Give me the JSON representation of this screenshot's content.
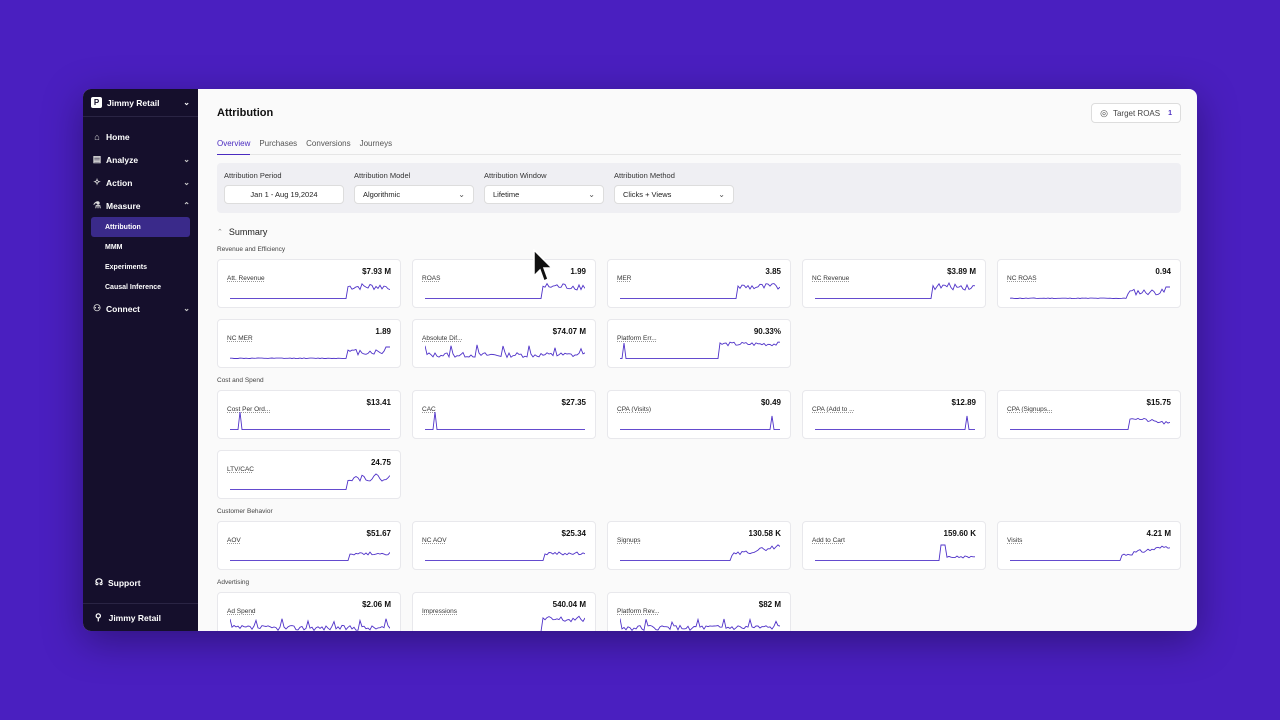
{
  "sidebar": {
    "org_name": "Jimmy Retail",
    "org_logo": "P",
    "items": [
      {
        "label": "Home",
        "icon": "home-icon"
      },
      {
        "label": "Analyze",
        "icon": "analyze-icon"
      },
      {
        "label": "Action",
        "icon": "action-icon"
      },
      {
        "label": "Measure",
        "icon": "measure-icon"
      }
    ],
    "measure_subitems": [
      "Attribution",
      "MMM",
      "Experiments",
      "Causal Inference"
    ],
    "connect_label": "Connect",
    "support_label": "Support",
    "user_name": "Jimmy Retail"
  },
  "header": {
    "title": "Attribution",
    "target_roas_label": "Target ROAS",
    "target_roas_count": "1"
  },
  "tabs": [
    "Overview",
    "Purchases",
    "Conversions",
    "Journeys"
  ],
  "filters": [
    {
      "label": "Attribution Period",
      "value": "Jan 1 - Aug 19,2024"
    },
    {
      "label": "Attribution Model",
      "value": "Algorithmic"
    },
    {
      "label": "Attribution Window",
      "value": "Lifetime"
    },
    {
      "label": "Attribution Method",
      "value": "Clicks + Views"
    }
  ],
  "summary_label": "Summary",
  "sections": [
    {
      "label": "Revenue and Efficiency",
      "cards": [
        {
          "name": "Att. Revenue",
          "value": "$7.93 M",
          "pattern": "step-noisy"
        },
        {
          "name": "ROAS",
          "value": "1.99",
          "pattern": "step-noisy"
        },
        {
          "name": "MER",
          "value": "3.85",
          "pattern": "step-noisy"
        },
        {
          "name": "NC Revenue",
          "value": "$3.89 M",
          "pattern": "step-noisy"
        },
        {
          "name": "NC ROAS",
          "value": "0.94",
          "pattern": "small-step"
        },
        {
          "name": "NC MER",
          "value": "1.89",
          "pattern": "small-step"
        },
        {
          "name": "Absolute Dif...",
          "value": "$74.07 M",
          "pattern": "full-noisy"
        },
        {
          "name": "Platform Err...",
          "value": "90.33%",
          "pattern": "spike-step"
        }
      ]
    },
    {
      "label": "Cost and Spend",
      "cards": [
        {
          "name": "Cost Per Ord...",
          "value": "$13.41",
          "pattern": "spike-left"
        },
        {
          "name": "CAC",
          "value": "$27.35",
          "pattern": "spike-left"
        },
        {
          "name": "CPA (Visits)",
          "value": "$0.49",
          "pattern": "spike-right"
        },
        {
          "name": "CPA (Add to ...",
          "value": "$12.89",
          "pattern": "spike-right"
        },
        {
          "name": "CPA (Signups...",
          "value": "$15.75",
          "pattern": "high-step-decay"
        },
        {
          "name": "LTV/CAC",
          "value": "24.75",
          "pattern": "step-noisy"
        }
      ]
    },
    {
      "label": "Customer Behavior",
      "cards": [
        {
          "name": "AOV",
          "value": "$51.67",
          "pattern": "step-flat"
        },
        {
          "name": "NC AOV",
          "value": "$25.34",
          "pattern": "step-flat"
        },
        {
          "name": "Signups",
          "value": "130.58 K",
          "pattern": "rise-noisy"
        },
        {
          "name": "Add to Cart",
          "value": "159.60 K",
          "pattern": "bump"
        },
        {
          "name": "Visits",
          "value": "4.21 M",
          "pattern": "rise-noisy"
        }
      ]
    },
    {
      "label": "Advertising",
      "cards": [
        {
          "name": "Ad Spend",
          "value": "$2.06 M",
          "pattern": "full-noisy"
        },
        {
          "name": "Impressions",
          "value": "540.04 M",
          "pattern": "step-noisy"
        },
        {
          "name": "Platform Rev...",
          "value": "$82 M",
          "pattern": "full-noisy"
        }
      ]
    }
  ],
  "colors": {
    "accent": "#4a2bc0",
    "sparkline": "#4f32c8",
    "sidebar": "#150f2c",
    "background": "#4a1fc0"
  }
}
